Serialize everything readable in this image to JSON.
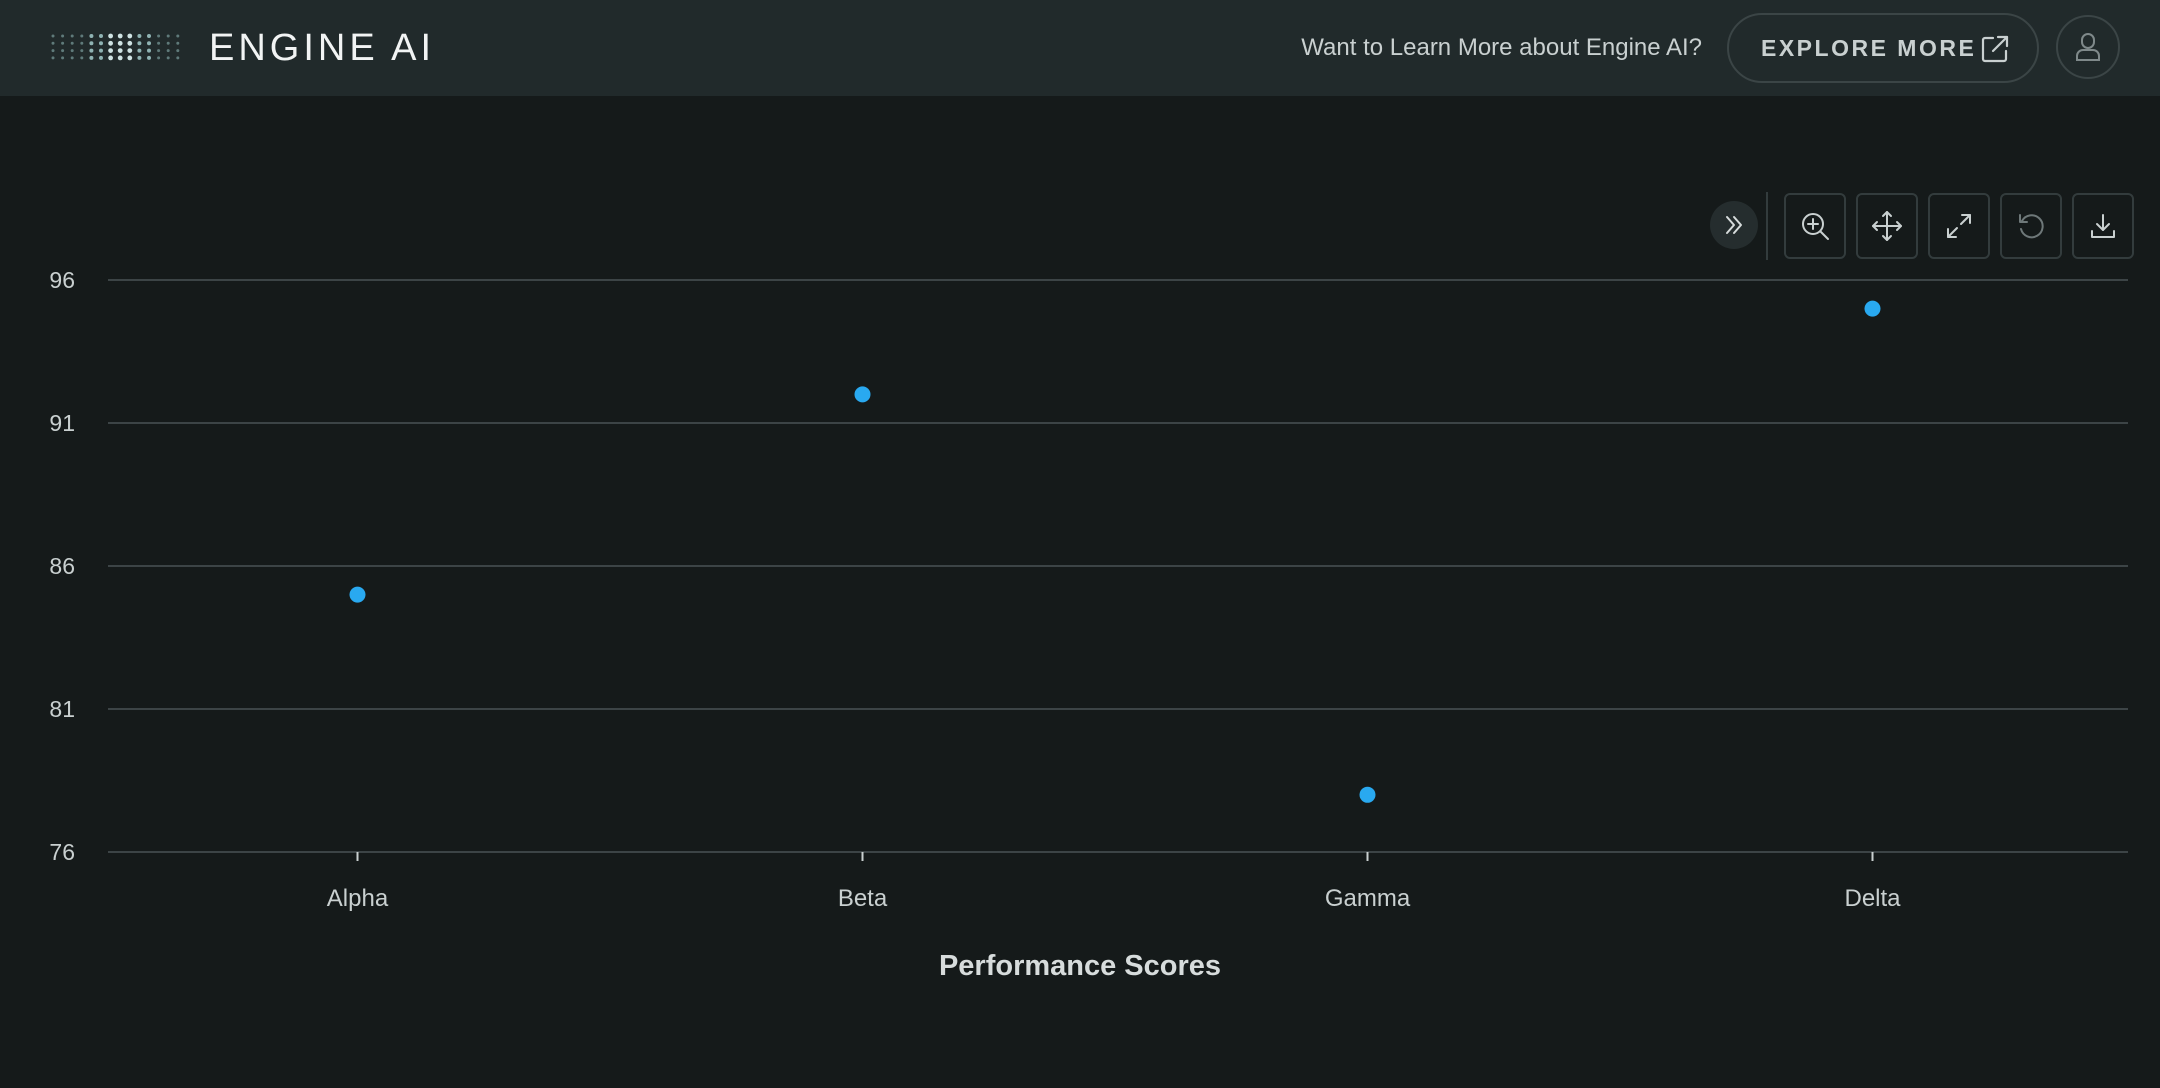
{
  "header": {
    "logo_text": "ENGINE AI",
    "promo_text": "Want to Learn More about Engine AI?",
    "explore_label": "EXPLORE MORE"
  },
  "toolbar": {
    "buttons": [
      "expand-icon",
      "zoom-in-icon",
      "pan-icon",
      "fullscreen-icon",
      "reset-icon",
      "download-icon"
    ]
  },
  "colors": {
    "background": "#151a1a",
    "header": "#212a2b",
    "point": "#29a9f0",
    "grid": "#4a5354",
    "text": "#c9d0d0"
  },
  "chart_data": {
    "type": "scatter",
    "title": "",
    "xlabel": "Performance Scores",
    "ylabel": "",
    "categories": [
      "Alpha",
      "Beta",
      "Gamma",
      "Delta"
    ],
    "values": [
      85,
      92,
      78,
      95
    ],
    "ylim": [
      76,
      96
    ],
    "yticks": [
      76,
      81,
      86,
      91,
      96
    ],
    "grid": true,
    "legend": "none"
  }
}
